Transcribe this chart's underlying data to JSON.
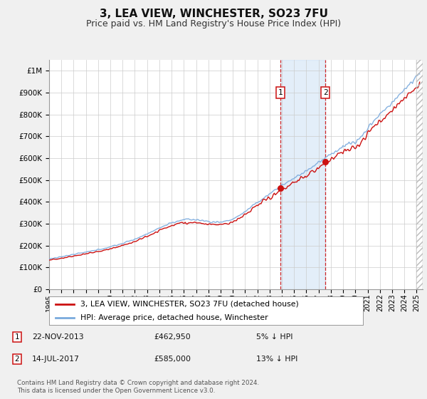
{
  "title": "3, LEA VIEW, WINCHESTER, SO23 7FU",
  "subtitle": "Price paid vs. HM Land Registry's House Price Index (HPI)",
  "ytick_values": [
    0,
    100000,
    200000,
    300000,
    400000,
    500000,
    600000,
    700000,
    800000,
    900000,
    1000000
  ],
  "ylim": [
    0,
    1050000
  ],
  "xlim_start": 1995.0,
  "xlim_end": 2025.5,
  "hpi_color": "#7aaadd",
  "price_color": "#cc1111",
  "marker1_date": 2013.9,
  "marker2_date": 2017.55,
  "marker1_price": 462950,
  "marker2_price": 585000,
  "legend_label1": "3, LEA VIEW, WINCHESTER, SO23 7FU (detached house)",
  "legend_label2": "HPI: Average price, detached house, Winchester",
  "annot1_date": "22-NOV-2013",
  "annot1_price": "£462,950",
  "annot1_hpi": "5% ↓ HPI",
  "annot2_date": "14-JUL-2017",
  "annot2_price": "£585,000",
  "annot2_hpi": "13% ↓ HPI",
  "footnote": "Contains HM Land Registry data © Crown copyright and database right 2024.\nThis data is licensed under the Open Government Licence v3.0.",
  "bg_color": "#f0f0f0",
  "plot_bg_color": "#ffffff",
  "grid_color": "#cccccc",
  "shade_color": "#cce0f5"
}
